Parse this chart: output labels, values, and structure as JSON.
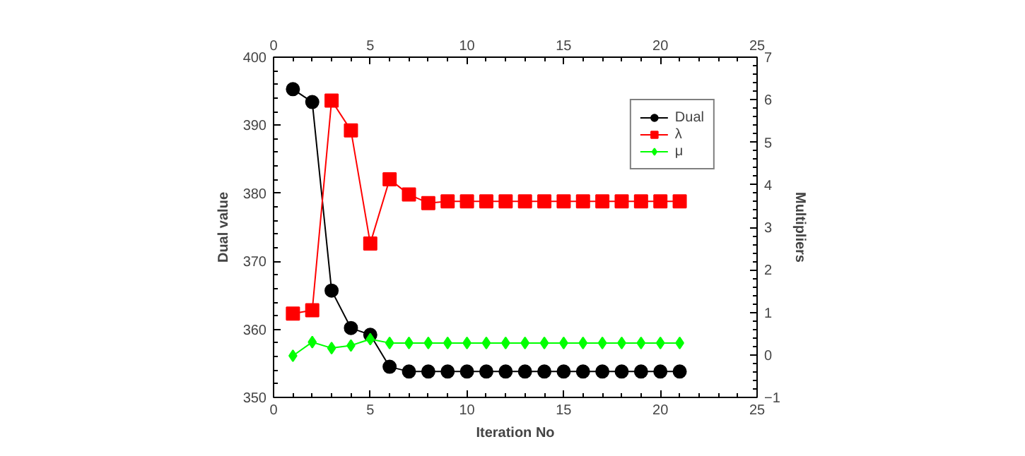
{
  "chart_data": {
    "type": "line",
    "xlabel": "Iteration No",
    "ylabel": "Dual value",
    "y2label": "Multipliers",
    "x": [
      1,
      2,
      3,
      4,
      5,
      6,
      7,
      8,
      9,
      10,
      11,
      12,
      13,
      14,
      15,
      16,
      17,
      18,
      19,
      20,
      21
    ],
    "series": [
      {
        "name": "Dual",
        "color": "#000000",
        "marker": "circle",
        "values": [
          395.3,
          393.4,
          365.7,
          360.2,
          359.2,
          354.5,
          353.8,
          353.8,
          353.8,
          353.8,
          353.8,
          353.8,
          353.8,
          353.8,
          353.8,
          353.8,
          353.8,
          353.8,
          353.8,
          353.8,
          353.8
        ]
      },
      {
        "name": "λ",
        "color": "#ff0000",
        "marker": "square",
        "axis": "y2",
        "values": [
          0.97,
          1.05,
          5.98,
          5.28,
          2.62,
          4.13,
          3.77,
          3.57,
          3.61,
          3.61,
          3.61,
          3.61,
          3.61,
          3.61,
          3.61,
          3.61,
          3.61,
          3.61,
          3.61,
          3.61,
          3.61
        ]
      },
      {
        "name": "μ",
        "color": "#00ff00",
        "marker": "diamond",
        "axis": "y2",
        "values": [
          -0.02,
          0.3,
          0.16,
          0.22,
          0.37,
          0.28,
          0.28,
          0.28,
          0.28,
          0.28,
          0.28,
          0.28,
          0.28,
          0.28,
          0.28,
          0.28,
          0.28,
          0.28,
          0.28,
          0.28,
          0.28
        ]
      }
    ],
    "xlim": [
      0,
      25
    ],
    "xticks": [
      0,
      5,
      10,
      15,
      20,
      25
    ],
    "x2lim": [
      0,
      25
    ],
    "x2ticks": [
      0,
      5,
      10,
      15,
      20,
      25
    ],
    "ylim": [
      350,
      400
    ],
    "yticks": [
      350,
      360,
      370,
      380,
      390,
      400
    ],
    "y2lim": [
      -1,
      7
    ],
    "y2ticks": [
      -1,
      0,
      1,
      2,
      3,
      4,
      5,
      6,
      7
    ],
    "grid": false,
    "legend": "top right",
    "line_style": "solid"
  }
}
